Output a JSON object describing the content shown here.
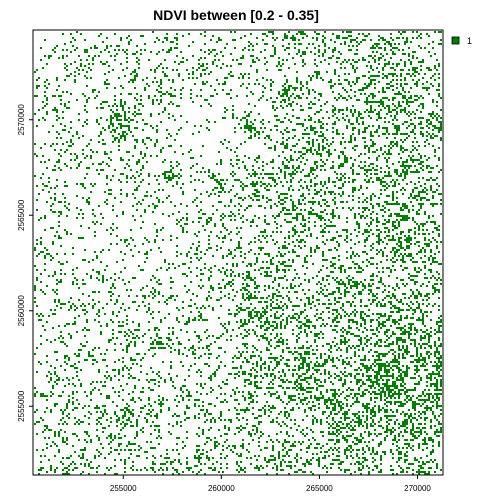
{
  "chart_data": {
    "type": "heatmap",
    "title": "NDVI between [0.2 - 0.35]",
    "xlabel": "",
    "ylabel": "",
    "x_ticks": [
      255000,
      260000,
      265000,
      270000
    ],
    "x_tick_labels": [
      "255000",
      "260000",
      "265000",
      "270000"
    ],
    "y_ticks": [
      2555000,
      2560000,
      2565000,
      2570000
    ],
    "y_tick_labels": [
      "2555000",
      "2560000",
      "2565000",
      "2570000"
    ],
    "xlim": [
      250400,
      271300
    ],
    "ylim": [
      2551400,
      2574700
    ],
    "grid": false,
    "legend": {
      "position": "top-right",
      "entries": [
        {
          "label": "1",
          "color": "#008000"
        }
      ]
    },
    "fill_color": "#008000",
    "background_color": "#ffffff"
  }
}
